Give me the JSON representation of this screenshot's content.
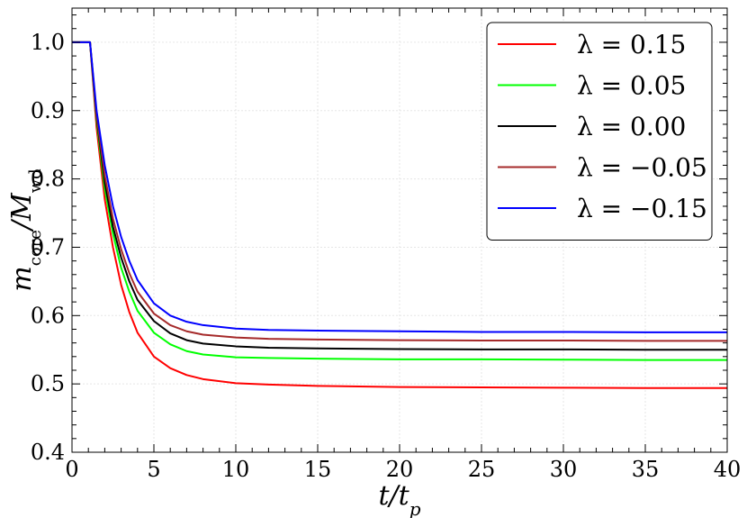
{
  "chart_data": {
    "type": "line",
    "xlabel": "t/t_p",
    "ylabel": "m_core/M_wd",
    "xlim": [
      0,
      40
    ],
    "ylim": [
      0.4,
      1.05
    ],
    "xticks": [
      0,
      5,
      10,
      15,
      20,
      25,
      30,
      35,
      40
    ],
    "yticks": [
      0.4,
      0.5,
      0.6,
      0.7,
      0.8,
      0.9,
      1.0
    ],
    "xtick_labels": [
      "0",
      "5",
      "10",
      "15",
      "20",
      "25",
      "30",
      "35",
      "40"
    ],
    "ytick_labels": [
      "0.4",
      "0.5",
      "0.6",
      "0.7",
      "0.8",
      "0.9",
      "1.0"
    ],
    "grid": true,
    "legend_position": "top-right",
    "series": [
      {
        "name": "λ = 0.15",
        "color": "#ff0000",
        "x": [
          0,
          1.1,
          1.5,
          2,
          2.5,
          3,
          3.5,
          4,
          5,
          6,
          7,
          8,
          10,
          12,
          15,
          20,
          25,
          30,
          35,
          40
        ],
        "y": [
          1.0,
          1.0,
          0.875,
          0.77,
          0.7,
          0.645,
          0.605,
          0.575,
          0.54,
          0.523,
          0.513,
          0.507,
          0.501,
          0.499,
          0.497,
          0.4955,
          0.495,
          0.4945,
          0.494,
          0.494
        ]
      },
      {
        "name": "λ = 0.05",
        "color": "#00ff00",
        "x": [
          0,
          1.1,
          1.5,
          2,
          2.5,
          3,
          3.5,
          4,
          5,
          6,
          7,
          8,
          10,
          12,
          15,
          20,
          25,
          30,
          35,
          40
        ],
        "y": [
          1.0,
          1.0,
          0.885,
          0.785,
          0.72,
          0.67,
          0.635,
          0.607,
          0.575,
          0.558,
          0.548,
          0.543,
          0.539,
          0.538,
          0.537,
          0.536,
          0.536,
          0.5355,
          0.535,
          0.535
        ]
      },
      {
        "name": "λ = 0.00",
        "color": "#000000",
        "x": [
          0,
          1.1,
          1.5,
          2,
          2.5,
          3,
          3.5,
          4,
          5,
          6,
          7,
          8,
          10,
          12,
          15,
          20,
          25,
          30,
          35,
          40
        ],
        "y": [
          1.0,
          1.0,
          0.89,
          0.795,
          0.73,
          0.685,
          0.65,
          0.623,
          0.592,
          0.574,
          0.564,
          0.559,
          0.555,
          0.553,
          0.552,
          0.551,
          0.5505,
          0.5505,
          0.55,
          0.55
        ]
      },
      {
        "name": "λ = −0.05",
        "color": "#a52a2a",
        "x": [
          0,
          1.1,
          1.5,
          2,
          2.5,
          3,
          3.5,
          4,
          5,
          6,
          7,
          8,
          10,
          12,
          15,
          20,
          25,
          30,
          35,
          40
        ],
        "y": [
          1.0,
          1.0,
          0.893,
          0.805,
          0.742,
          0.697,
          0.662,
          0.635,
          0.603,
          0.586,
          0.577,
          0.572,
          0.568,
          0.566,
          0.565,
          0.564,
          0.5635,
          0.5635,
          0.563,
          0.563
        ]
      },
      {
        "name": "λ = −0.15",
        "color": "#0000ff",
        "x": [
          0,
          1.1,
          1.5,
          2,
          2.5,
          3,
          3.5,
          4,
          5,
          6,
          7,
          8,
          10,
          12,
          15,
          20,
          25,
          30,
          35,
          40
        ],
        "y": [
          1.0,
          1.0,
          0.9,
          0.82,
          0.76,
          0.715,
          0.68,
          0.652,
          0.618,
          0.6,
          0.591,
          0.586,
          0.581,
          0.579,
          0.578,
          0.577,
          0.576,
          0.576,
          0.5755,
          0.5755
        ]
      }
    ]
  }
}
